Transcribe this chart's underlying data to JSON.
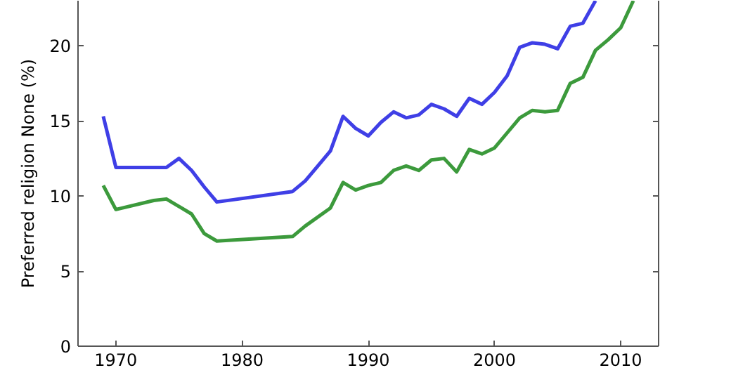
{
  "chart_data": {
    "type": "line",
    "ylabel": "Preferred religion None (%)",
    "xlim": [
      1967,
      2013
    ],
    "xticks": [
      1970,
      1980,
      1990,
      2000,
      2010
    ],
    "ylim": [
      0,
      23
    ],
    "yticks": [
      0,
      5,
      10,
      15,
      20
    ],
    "line_style": "solid",
    "series": [
      {
        "color": "#3f3fe6",
        "x": [
          1969,
          1970,
          1972,
          1974,
          1975,
          1976,
          1977,
          1978,
          1984,
          1985,
          1986,
          1987,
          1988,
          1989,
          1990,
          1991,
          1992,
          1993,
          1994,
          1995,
          1996,
          1997,
          1998,
          1999,
          2000,
          2001,
          2002,
          2003,
          2004,
          2005,
          2006,
          2007,
          2008
        ],
        "values": [
          15.3,
          11.9,
          11.9,
          11.9,
          12.5,
          11.7,
          10.6,
          9.6,
          10.3,
          11.0,
          12.0,
          13.0,
          15.3,
          14.5,
          14.0,
          14.9,
          15.6,
          15.2,
          15.4,
          16.1,
          15.8,
          15.3,
          16.5,
          16.1,
          16.9,
          18.0,
          19.9,
          20.2,
          20.1,
          19.8,
          21.3,
          21.5,
          23
        ]
      },
      {
        "color": "#3c9a3c",
        "x": [
          1969,
          1970,
          1973,
          1974,
          1976,
          1977,
          1978,
          1984,
          1985,
          1987,
          1988,
          1989,
          1990,
          1991,
          1992,
          1993,
          1994,
          1995,
          1996,
          1997,
          1998,
          1999,
          2000,
          2001,
          2002,
          2003,
          2004,
          2005,
          2006,
          2007,
          2008,
          2009,
          2010,
          2011
        ],
        "values": [
          10.7,
          9.1,
          9.7,
          9.8,
          8.8,
          7.5,
          7.0,
          7.3,
          8.0,
          9.2,
          10.9,
          10.4,
          10.7,
          10.9,
          11.7,
          12.0,
          11.7,
          12.4,
          12.5,
          11.6,
          13.1,
          12.8,
          13.2,
          14.2,
          15.2,
          15.7,
          15.6,
          15.7,
          17.5,
          17.9,
          19.7,
          20.4,
          21.2,
          23
        ]
      }
    ]
  }
}
